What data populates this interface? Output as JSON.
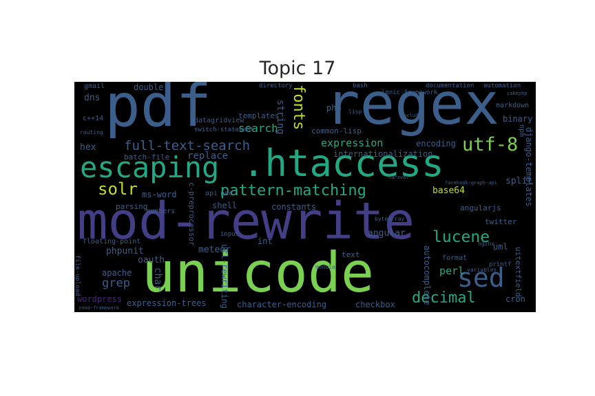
{
  "title": "Topic 17",
  "palette": {
    "background": "#000000",
    "blue": "#3b5f8a",
    "indigo": "#433e85",
    "teal": "#23a884",
    "green": "#7ad151",
    "lime": "#bddf26",
    "purple": "#482475"
  },
  "words": {
    "pdf": "pdf",
    "regex": "regex",
    "escaping": "escaping",
    "htaccess": ".htaccess",
    "mod_rewrite": "mod-rewrite",
    "unicode": "unicode",
    "sed": "sed",
    "pattern_matching": "pattern-matching",
    "utf8": "utf-8",
    "full_text_search": "full-text-search",
    "solr": "solr",
    "lucene": "lucene",
    "decimal": "decimal",
    "fonts": "fonts",
    "search": "search",
    "expression": "expression",
    "templates": "templates",
    "string": "string",
    "common_lisp": "common-lisp",
    "encoding": "encoding",
    "internationalization": "internationalization",
    "perl": "perl",
    "grep": "grep",
    "apache": "apache",
    "phpunit": "phpunit",
    "meteor": "meteor",
    "oauth": "oauth",
    "ms_word": "ms-word",
    "replace": "replace",
    "batch_file": "batch-file",
    "hex": "hex",
    "double": "double",
    "dns": "dns",
    "gmail": "gmail",
    "cpp14": "c++14",
    "datagridview": "datagridview",
    "switch_statement": "switch-statement",
    "php": "php",
    "split": "split",
    "binary": "binary",
    "markdown": "markdown",
    "django_templates": "django-templates",
    "base64": "base64",
    "angularjs": "angularjs",
    "twitter": "twitter",
    "angular": "angular",
    "autocomplete": "autocomplete",
    "uml": "uml",
    "format": "format",
    "uitextfield": "uitextfield",
    "cron": "cron",
    "checkbox": "checkbox",
    "character_encoding": "character-encoding",
    "expression_trees": "expression-trees",
    "wordpress": "wordpress",
    "zend_framework": "zend-framework",
    "char": "char",
    "url_rewriting": "url-rewriting",
    "c_preprocessor": "c-preprocessor",
    "numbers": "numbers",
    "parsing": "parsing",
    "shell": "shell",
    "api": "api",
    "pdo": "pdo",
    "constants": "constants",
    "int": "int",
    "floating_point": "floating-point",
    "file_upload": "file-upload",
    "printf": "printf",
    "text": "text",
    "input": "input",
    "bash": "bash",
    "directory": "directory",
    "documentation": "documentation",
    "automation": "automation",
    "ionic_framework": "ionic-framework",
    "npm": "npm",
    "routing": "routing",
    "bytearray": "bytearray",
    "variables": "variables",
    "module": "module",
    "nginx": "nginx",
    "laravel": "laravel",
    "facebook_graph_api": "facebook-graph-api",
    "cakephp": "cakephp",
    "include": "include",
    "lisp": "lisp"
  }
}
